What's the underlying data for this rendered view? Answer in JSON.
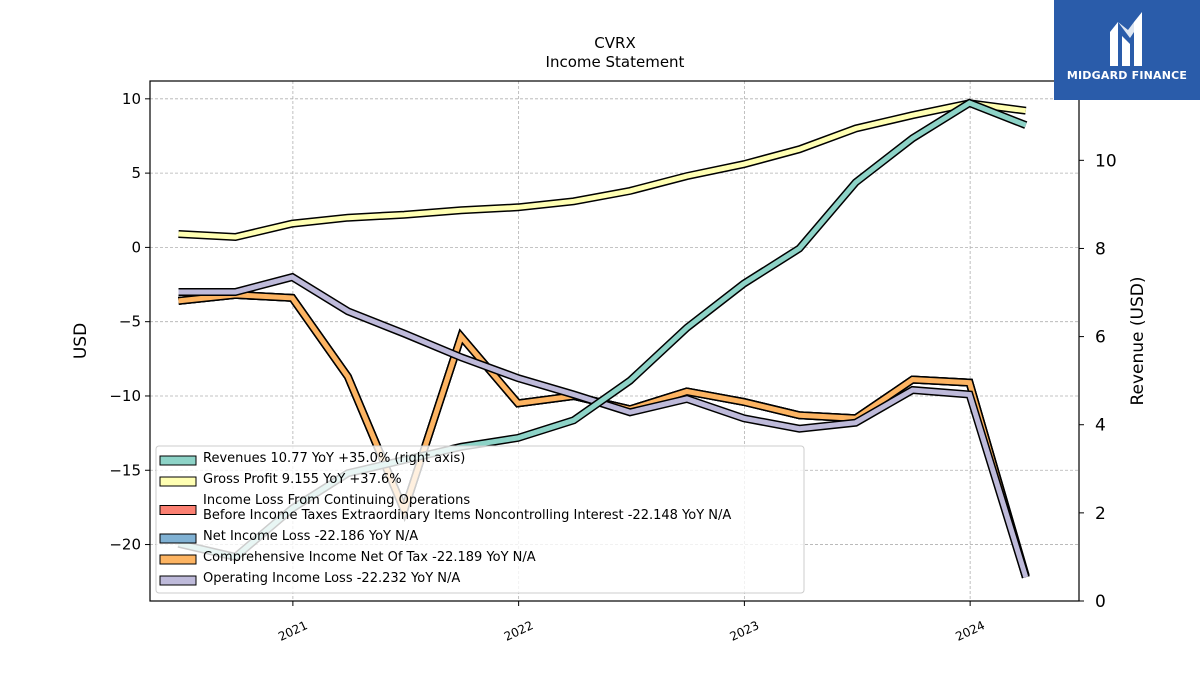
{
  "brand": {
    "name": "MIDGARD FINANCE",
    "color": "#2a5caa"
  },
  "chart_data": {
    "type": "line",
    "title": "CVRX",
    "subtitle": "Income Statement",
    "ylabel_left": "USD",
    "ylabel_right": "Revenue (USD)",
    "xlim": [
      "2020-05-15",
      "2024-06-25"
    ],
    "ylim_left": [
      -23.8,
      11.2
    ],
    "ylim_right": [
      0,
      11.8
    ],
    "left_ticks": [
      10,
      5,
      0,
      -5,
      -10,
      -15,
      -20
    ],
    "right_ticks": [
      0,
      2,
      4,
      6,
      8,
      10
    ],
    "x_ticks": [
      {
        "date": "2021-01-01",
        "label": "2021"
      },
      {
        "date": "2022-01-01",
        "label": "2022"
      },
      {
        "date": "2023-01-01",
        "label": "2023"
      },
      {
        "date": "2024-01-01",
        "label": "2024"
      }
    ],
    "grid": true,
    "legend_position": "lower-left",
    "series": [
      {
        "name": "Gross Profit  9.155 YoY +37.6%",
        "color": "#ffffb3",
        "axis": "left",
        "points": [
          [
            "2020-06-30",
            0.9
          ],
          [
            "2020-09-30",
            0.7
          ],
          [
            "2020-12-31",
            1.6
          ],
          [
            "2021-03-31",
            2.0
          ],
          [
            "2021-06-30",
            2.2
          ],
          [
            "2021-09-30",
            2.5
          ],
          [
            "2021-12-31",
            2.7
          ],
          [
            "2022-03-31",
            3.1
          ],
          [
            "2022-06-30",
            3.8
          ],
          [
            "2022-09-30",
            4.8
          ],
          [
            "2022-12-31",
            5.6
          ],
          [
            "2023-03-31",
            6.6
          ],
          [
            "2023-06-30",
            8.0
          ],
          [
            "2023-09-30",
            8.9
          ],
          [
            "2023-12-31",
            9.7
          ],
          [
            "2024-03-31",
            9.2
          ]
        ]
      },
      {
        "name": "Income Loss From Continuing Operations\nBefore Income Taxes Extraordinary Items Noncontrolling Interest  -22.148 YoY N/A",
        "color": "#fb8072",
        "axis": "left",
        "points": [
          [
            "2020-06-30",
            -3.6
          ],
          [
            "2020-09-30",
            -3.2
          ],
          [
            "2020-12-31",
            -3.4
          ],
          [
            "2021-03-31",
            -8.7
          ],
          [
            "2021-06-30",
            -17.7
          ],
          [
            "2021-09-30",
            -6.0
          ],
          [
            "2021-12-31",
            -10.5
          ],
          [
            "2022-03-31",
            -10.0
          ],
          [
            "2022-06-30",
            -10.9
          ],
          [
            "2022-09-30",
            -9.7
          ],
          [
            "2022-12-31",
            -10.4
          ],
          [
            "2023-03-31",
            -11.3
          ],
          [
            "2023-06-30",
            -11.5
          ],
          [
            "2023-09-30",
            -8.9
          ],
          [
            "2023-12-31",
            -9.1
          ],
          [
            "2024-03-31",
            -22.1
          ]
        ]
      },
      {
        "name": "Net Income Loss  -22.186 YoY N/A",
        "color": "#80b1d3",
        "axis": "left",
        "points": [
          [
            "2020-06-30",
            -3.6
          ],
          [
            "2020-09-30",
            -3.2
          ],
          [
            "2020-12-31",
            -3.4
          ],
          [
            "2021-03-31",
            -8.7
          ],
          [
            "2021-06-30",
            -17.7
          ],
          [
            "2021-09-30",
            -6.0
          ],
          [
            "2021-12-31",
            -10.5
          ],
          [
            "2022-03-31",
            -10.0
          ],
          [
            "2022-06-30",
            -10.9
          ],
          [
            "2022-09-30",
            -9.7
          ],
          [
            "2022-12-31",
            -10.4
          ],
          [
            "2023-03-31",
            -11.3
          ],
          [
            "2023-06-30",
            -11.5
          ],
          [
            "2023-09-30",
            -8.9
          ],
          [
            "2023-12-31",
            -9.1
          ],
          [
            "2024-03-31",
            -22.2
          ]
        ]
      },
      {
        "name": "Comprehensive Income Net Of Tax  -22.189 YoY N/A",
        "color": "#fdb462",
        "axis": "left",
        "points": [
          [
            "2020-06-30",
            -3.6
          ],
          [
            "2020-09-30",
            -3.2
          ],
          [
            "2020-12-31",
            -3.4
          ],
          [
            "2021-03-31",
            -8.7
          ],
          [
            "2021-06-30",
            -17.7
          ],
          [
            "2021-09-30",
            -6.0
          ],
          [
            "2021-12-31",
            -10.5
          ],
          [
            "2022-03-31",
            -10.0
          ],
          [
            "2022-06-30",
            -10.9
          ],
          [
            "2022-09-30",
            -9.7
          ],
          [
            "2022-12-31",
            -10.4
          ],
          [
            "2023-03-31",
            -11.3
          ],
          [
            "2023-06-30",
            -11.5
          ],
          [
            "2023-09-30",
            -8.9
          ],
          [
            "2023-12-31",
            -9.1
          ],
          [
            "2024-03-31",
            -22.2
          ]
        ]
      },
      {
        "name": "Operating Income Loss  -22.232 YoY N/A",
        "color": "#bebada",
        "axis": "left",
        "points": [
          [
            "2020-06-30",
            -3.0
          ],
          [
            "2020-09-30",
            -3.0
          ],
          [
            "2020-12-31",
            -2.0
          ],
          [
            "2021-03-31",
            -4.3
          ],
          [
            "2021-06-30",
            -5.8
          ],
          [
            "2021-09-30",
            -7.4
          ],
          [
            "2021-12-31",
            -8.8
          ],
          [
            "2022-03-31",
            -9.9
          ],
          [
            "2022-06-30",
            -11.1
          ],
          [
            "2022-09-30",
            -10.2
          ],
          [
            "2022-12-31",
            -11.5
          ],
          [
            "2023-03-31",
            -12.2
          ],
          [
            "2023-06-30",
            -11.8
          ],
          [
            "2023-09-30",
            -9.6
          ],
          [
            "2023-12-31",
            -9.9
          ],
          [
            "2024-03-31",
            -22.2
          ]
        ]
      },
      {
        "name": "Revenues  10.77 YoY +35.0% (right axis)",
        "color": "#8dd3c7",
        "axis": "right",
        "points": [
          [
            "2020-06-30",
            1.3
          ],
          [
            "2020-09-30",
            1.0
          ],
          [
            "2020-12-31",
            2.1
          ],
          [
            "2021-03-31",
            2.9
          ],
          [
            "2021-06-30",
            3.2
          ],
          [
            "2021-09-30",
            3.5
          ],
          [
            "2021-12-31",
            3.7
          ],
          [
            "2022-03-31",
            4.1
          ],
          [
            "2022-06-30",
            5.0
          ],
          [
            "2022-09-30",
            6.2
          ],
          [
            "2022-12-31",
            7.2
          ],
          [
            "2023-03-31",
            8.0
          ],
          [
            "2023-06-30",
            9.5
          ],
          [
            "2023-09-30",
            10.5
          ],
          [
            "2023-12-31",
            11.3
          ],
          [
            "2024-03-31",
            10.8
          ]
        ]
      }
    ],
    "legend_order": [
      5,
      0,
      1,
      2,
      3,
      4
    ]
  }
}
